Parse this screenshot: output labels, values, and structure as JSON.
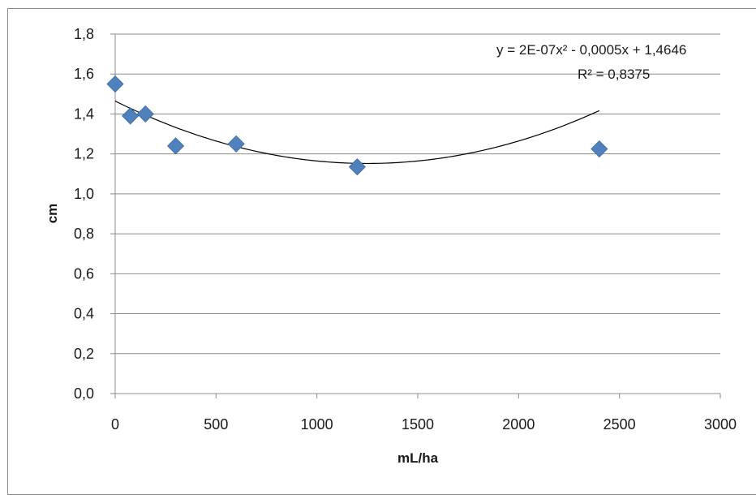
{
  "chart_data": {
    "type": "scatter",
    "xlabel": "mL/ha",
    "ylabel": "cm",
    "xlim": [
      0,
      3000
    ],
    "ylim": [
      0,
      1.8
    ],
    "x_ticks": [
      "0",
      "500",
      "1000",
      "1500",
      "2000",
      "2500",
      "3000"
    ],
    "y_ticks": [
      "0,0",
      "0,2",
      "0,4",
      "0,6",
      "0,8",
      "1,0",
      "1,2",
      "1,4",
      "1,6",
      "1,8"
    ],
    "grid": "horizontal",
    "series": [
      {
        "points": [
          {
            "x": 0,
            "y": 1.55
          },
          {
            "x": 75,
            "y": 1.39
          },
          {
            "x": 150,
            "y": 1.4
          },
          {
            "x": 300,
            "y": 1.24
          },
          {
            "x": 600,
            "y": 1.25
          },
          {
            "x": 1200,
            "y": 1.135
          },
          {
            "x": 2400,
            "y": 1.225
          }
        ],
        "color": "#4f81bd",
        "marker": "diamond"
      }
    ],
    "trendline": {
      "type": "polynomial",
      "equation": "y = 2E-07x² - 0,0005x + 1,4646",
      "r_squared": "R² = 0,8375",
      "coefficients": [
        2e-07,
        -0.0005,
        1.4646
      ],
      "x_range": [
        0,
        2400
      ],
      "color": "#000000"
    }
  }
}
